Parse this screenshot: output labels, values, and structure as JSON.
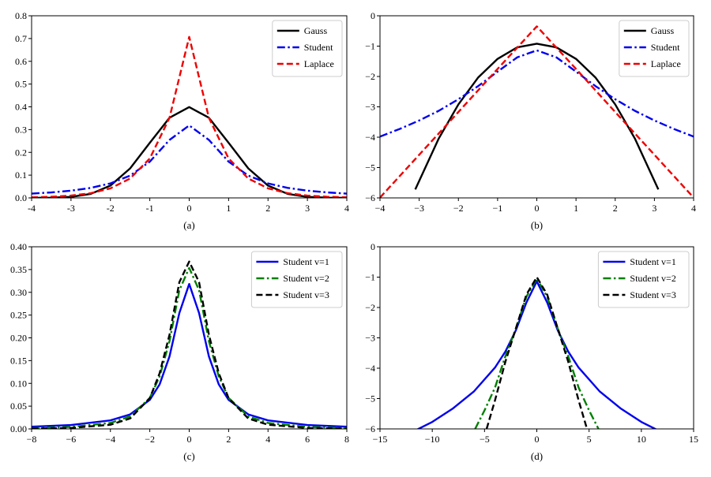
{
  "chart_data": [
    {
      "type": "line",
      "panel": "a",
      "xlabel": "(a)",
      "ylabel": "",
      "title": "",
      "xlim": [
        -4,
        4
      ],
      "ylim": [
        0,
        0.8
      ],
      "xticks": [
        -4,
        -3,
        -2,
        -1,
        0,
        1,
        2,
        3,
        4
      ],
      "yticks": [
        0,
        0.1,
        0.2,
        0.3,
        0.4,
        0.5,
        0.6,
        0.7,
        0.8
      ],
      "ytick_labels": [
        "0.0",
        "0.1",
        "0.2",
        "0.3",
        "0.4",
        "0.5",
        "0.6",
        "0.7",
        "0.8"
      ],
      "grid": false,
      "legend_position": "top-right",
      "series": [
        {
          "name": "Gauss",
          "color": "#000000",
          "style": "solid",
          "x": [
            -4,
            -3.5,
            -3,
            -2.5,
            -2,
            -1.5,
            -1,
            -0.5,
            0,
            0.5,
            1,
            1.5,
            2,
            2.5,
            3,
            3.5,
            4
          ],
          "y": [
            0.0001,
            0.0009,
            0.0044,
            0.0175,
            0.054,
            0.1295,
            0.242,
            0.3521,
            0.3989,
            0.3521,
            0.242,
            0.1295,
            0.054,
            0.0175,
            0.0044,
            0.0009,
            0.0001
          ]
        },
        {
          "name": "Student",
          "color": "#0000ee",
          "style": "dashdot",
          "x": [
            -4,
            -3.5,
            -3,
            -2.5,
            -2,
            -1.5,
            -1,
            -0.5,
            0,
            0.5,
            1,
            1.5,
            2,
            2.5,
            3,
            3.5,
            4
          ],
          "y": [
            0.0187,
            0.0241,
            0.0318,
            0.0439,
            0.0637,
            0.0979,
            0.1592,
            0.2546,
            0.3183,
            0.2546,
            0.1592,
            0.0979,
            0.0637,
            0.0439,
            0.0318,
            0.0241,
            0.0187
          ]
        },
        {
          "name": "Laplace",
          "color": "#ee0000",
          "style": "dashed",
          "x": [
            -4,
            -3.5,
            -3,
            -2.5,
            -2,
            -1.5,
            -1,
            -0.5,
            0,
            0.5,
            1,
            1.5,
            2,
            2.5,
            3,
            3.5,
            4
          ],
          "y": [
            0.0025,
            0.005,
            0.0101,
            0.0206,
            0.0419,
            0.0851,
            0.1731,
            0.3518,
            0.7071,
            0.3518,
            0.1731,
            0.0851,
            0.0419,
            0.0206,
            0.0101,
            0.005,
            0.0025
          ]
        }
      ]
    },
    {
      "type": "line",
      "panel": "b",
      "xlabel": "(b)",
      "ylabel": "",
      "title": "",
      "xlim": [
        -4,
        4
      ],
      "ylim": [
        -6,
        0
      ],
      "xticks": [
        -4,
        -3,
        -2,
        -1,
        0,
        1,
        2,
        3,
        4
      ],
      "xtick_labels": [
        "−4",
        "−3",
        "−2",
        "−1",
        "0",
        "1",
        "2",
        "3",
        "4"
      ],
      "yticks": [
        -6,
        -5,
        -4,
        -3,
        -2,
        -1,
        0
      ],
      "ytick_labels": [
        "−6",
        "−5",
        "−4",
        "−3",
        "−2",
        "−1",
        "0"
      ],
      "grid": false,
      "legend_position": "top-right",
      "series": [
        {
          "name": "Gauss",
          "color": "#000000",
          "style": "solid",
          "x": [
            -3.1,
            -2.5,
            -2,
            -1.5,
            -1,
            -0.5,
            0,
            0.5,
            1,
            1.5,
            2,
            2.5,
            3.1
          ],
          "y": [
            -5.72,
            -4.04,
            -2.92,
            -2.04,
            -1.42,
            -1.04,
            -0.92,
            -1.04,
            -1.42,
            -2.04,
            -2.92,
            -4.04,
            -5.72
          ]
        },
        {
          "name": "Student",
          "color": "#0000ee",
          "style": "dashdot",
          "x": [
            -4,
            -3.5,
            -3,
            -2.5,
            -2,
            -1.5,
            -1,
            -0.5,
            0,
            0.5,
            1,
            1.5,
            2,
            2.5,
            3,
            3.5,
            4
          ],
          "y": [
            -3.98,
            -3.73,
            -3.45,
            -3.13,
            -2.75,
            -2.32,
            -1.84,
            -1.37,
            -1.14,
            -1.37,
            -1.84,
            -2.32,
            -2.75,
            -3.13,
            -3.45,
            -3.73,
            -3.98
          ]
        },
        {
          "name": "Laplace",
          "color": "#ee0000",
          "style": "dashed",
          "x": [
            -4,
            -3,
            -2,
            -1,
            0,
            1,
            2,
            3,
            4
          ],
          "y": [
            -5.99,
            -4.58,
            -3.17,
            -1.75,
            -0.35,
            -1.75,
            -3.17,
            -4.58,
            -5.99
          ]
        }
      ]
    },
    {
      "type": "line",
      "panel": "c",
      "xlabel": "(c)",
      "ylabel": "",
      "title": "",
      "xlim": [
        -8,
        8
      ],
      "ylim": [
        0,
        0.4
      ],
      "xticks": [
        -8,
        -6,
        -4,
        -2,
        0,
        2,
        4,
        6,
        8
      ],
      "xtick_labels": [
        "−8",
        "−6",
        "−4",
        "−2",
        "0",
        "2",
        "4",
        "6",
        "8"
      ],
      "yticks": [
        0,
        0.05,
        0.1,
        0.15,
        0.2,
        0.25,
        0.3,
        0.35,
        0.4
      ],
      "ytick_labels": [
        "0.00",
        "0.05",
        "0.10",
        "0.15",
        "0.20",
        "0.25",
        "0.30",
        "0.35",
        "0.40"
      ],
      "grid": false,
      "legend_position": "top-right",
      "series": [
        {
          "name": "Student v=1",
          "color": "#0000ee",
          "style": "solid",
          "x": [
            -8,
            -6,
            -4,
            -3,
            -2,
            -1.5,
            -1,
            -0.5,
            0,
            0.5,
            1,
            1.5,
            2,
            3,
            4,
            6,
            8
          ],
          "y": [
            0.0049,
            0.0086,
            0.0187,
            0.0318,
            0.0637,
            0.0979,
            0.1592,
            0.2546,
            0.3183,
            0.2546,
            0.1592,
            0.0979,
            0.0637,
            0.0318,
            0.0187,
            0.0086,
            0.0049
          ]
        },
        {
          "name": "Student v=2",
          "color": "#008000",
          "style": "dashdot",
          "x": [
            -8,
            -6,
            -4,
            -3,
            -2,
            -1.5,
            -1,
            -0.5,
            0,
            0.5,
            1,
            1.5,
            2,
            3,
            4,
            6,
            8
          ],
          "y": [
            0.0019,
            0.0042,
            0.0131,
            0.0274,
            0.068,
            0.1156,
            0.1925,
            0.3046,
            0.3536,
            0.3046,
            0.1925,
            0.1156,
            0.068,
            0.0274,
            0.0131,
            0.0042,
            0.0019
          ]
        },
        {
          "name": "Student v=3",
          "color": "#000000",
          "style": "dashed",
          "x": [
            -8,
            -6,
            -4,
            -3,
            -2,
            -1.5,
            -1,
            -0.5,
            0,
            0.5,
            1,
            1.5,
            2,
            3,
            4,
            6,
            8
          ],
          "y": [
            0.0007,
            0.0021,
            0.0092,
            0.0229,
            0.0675,
            0.1225,
            0.2067,
            0.3223,
            0.3676,
            0.3223,
            0.2067,
            0.1225,
            0.0675,
            0.0229,
            0.0092,
            0.0021,
            0.0007
          ]
        }
      ]
    },
    {
      "type": "line",
      "panel": "d",
      "xlabel": "(d)",
      "ylabel": "",
      "title": "",
      "xlim": [
        -15,
        15
      ],
      "ylim": [
        -6,
        0
      ],
      "xticks": [
        -15,
        -10,
        -5,
        0,
        5,
        10,
        15
      ],
      "xtick_labels": [
        "−15",
        "−10",
        "−5",
        "0",
        "5",
        "10",
        "15"
      ],
      "yticks": [
        -6,
        -5,
        -4,
        -3,
        -2,
        -1,
        0
      ],
      "ytick_labels": [
        "−6",
        "−5",
        "−4",
        "−3",
        "−2",
        "−1",
        "0"
      ],
      "grid": false,
      "legend_position": "top-right",
      "series": [
        {
          "name": "Student v=1",
          "color": "#0000ee",
          "style": "solid",
          "x": [
            -11.5,
            -10,
            -8,
            -6,
            -4,
            -3,
            -2,
            -1,
            0,
            1,
            2,
            3,
            4,
            6,
            8,
            10,
            11.5
          ],
          "y": [
            -6.03,
            -5.77,
            -5.32,
            -4.76,
            -3.98,
            -3.45,
            -2.75,
            -1.84,
            -1.14,
            -1.84,
            -2.75,
            -3.45,
            -3.98,
            -4.76,
            -5.32,
            -5.77,
            -6.03
          ]
        },
        {
          "name": "Student v=2",
          "color": "#008000",
          "style": "dashdot",
          "x": [
            -5.9,
            -5,
            -4,
            -3,
            -2,
            -1,
            0,
            1,
            2,
            3,
            4,
            5,
            5.9
          ],
          "y": [
            -6.0,
            -5.39,
            -4.64,
            -3.6,
            -2.69,
            -1.65,
            -1.04,
            -1.65,
            -2.69,
            -3.6,
            -4.64,
            -5.39,
            -6.0
          ]
        },
        {
          "name": "Student v=3",
          "color": "#000000",
          "style": "dashed",
          "x": [
            -4.8,
            -4,
            -3,
            -2,
            -1,
            0,
            1,
            2,
            3,
            4,
            4.8
          ],
          "y": [
            -6.0,
            -5.06,
            -3.78,
            -2.69,
            -1.58,
            -1.0,
            -1.58,
            -2.69,
            -3.78,
            -5.06,
            -6.0
          ]
        }
      ]
    }
  ]
}
